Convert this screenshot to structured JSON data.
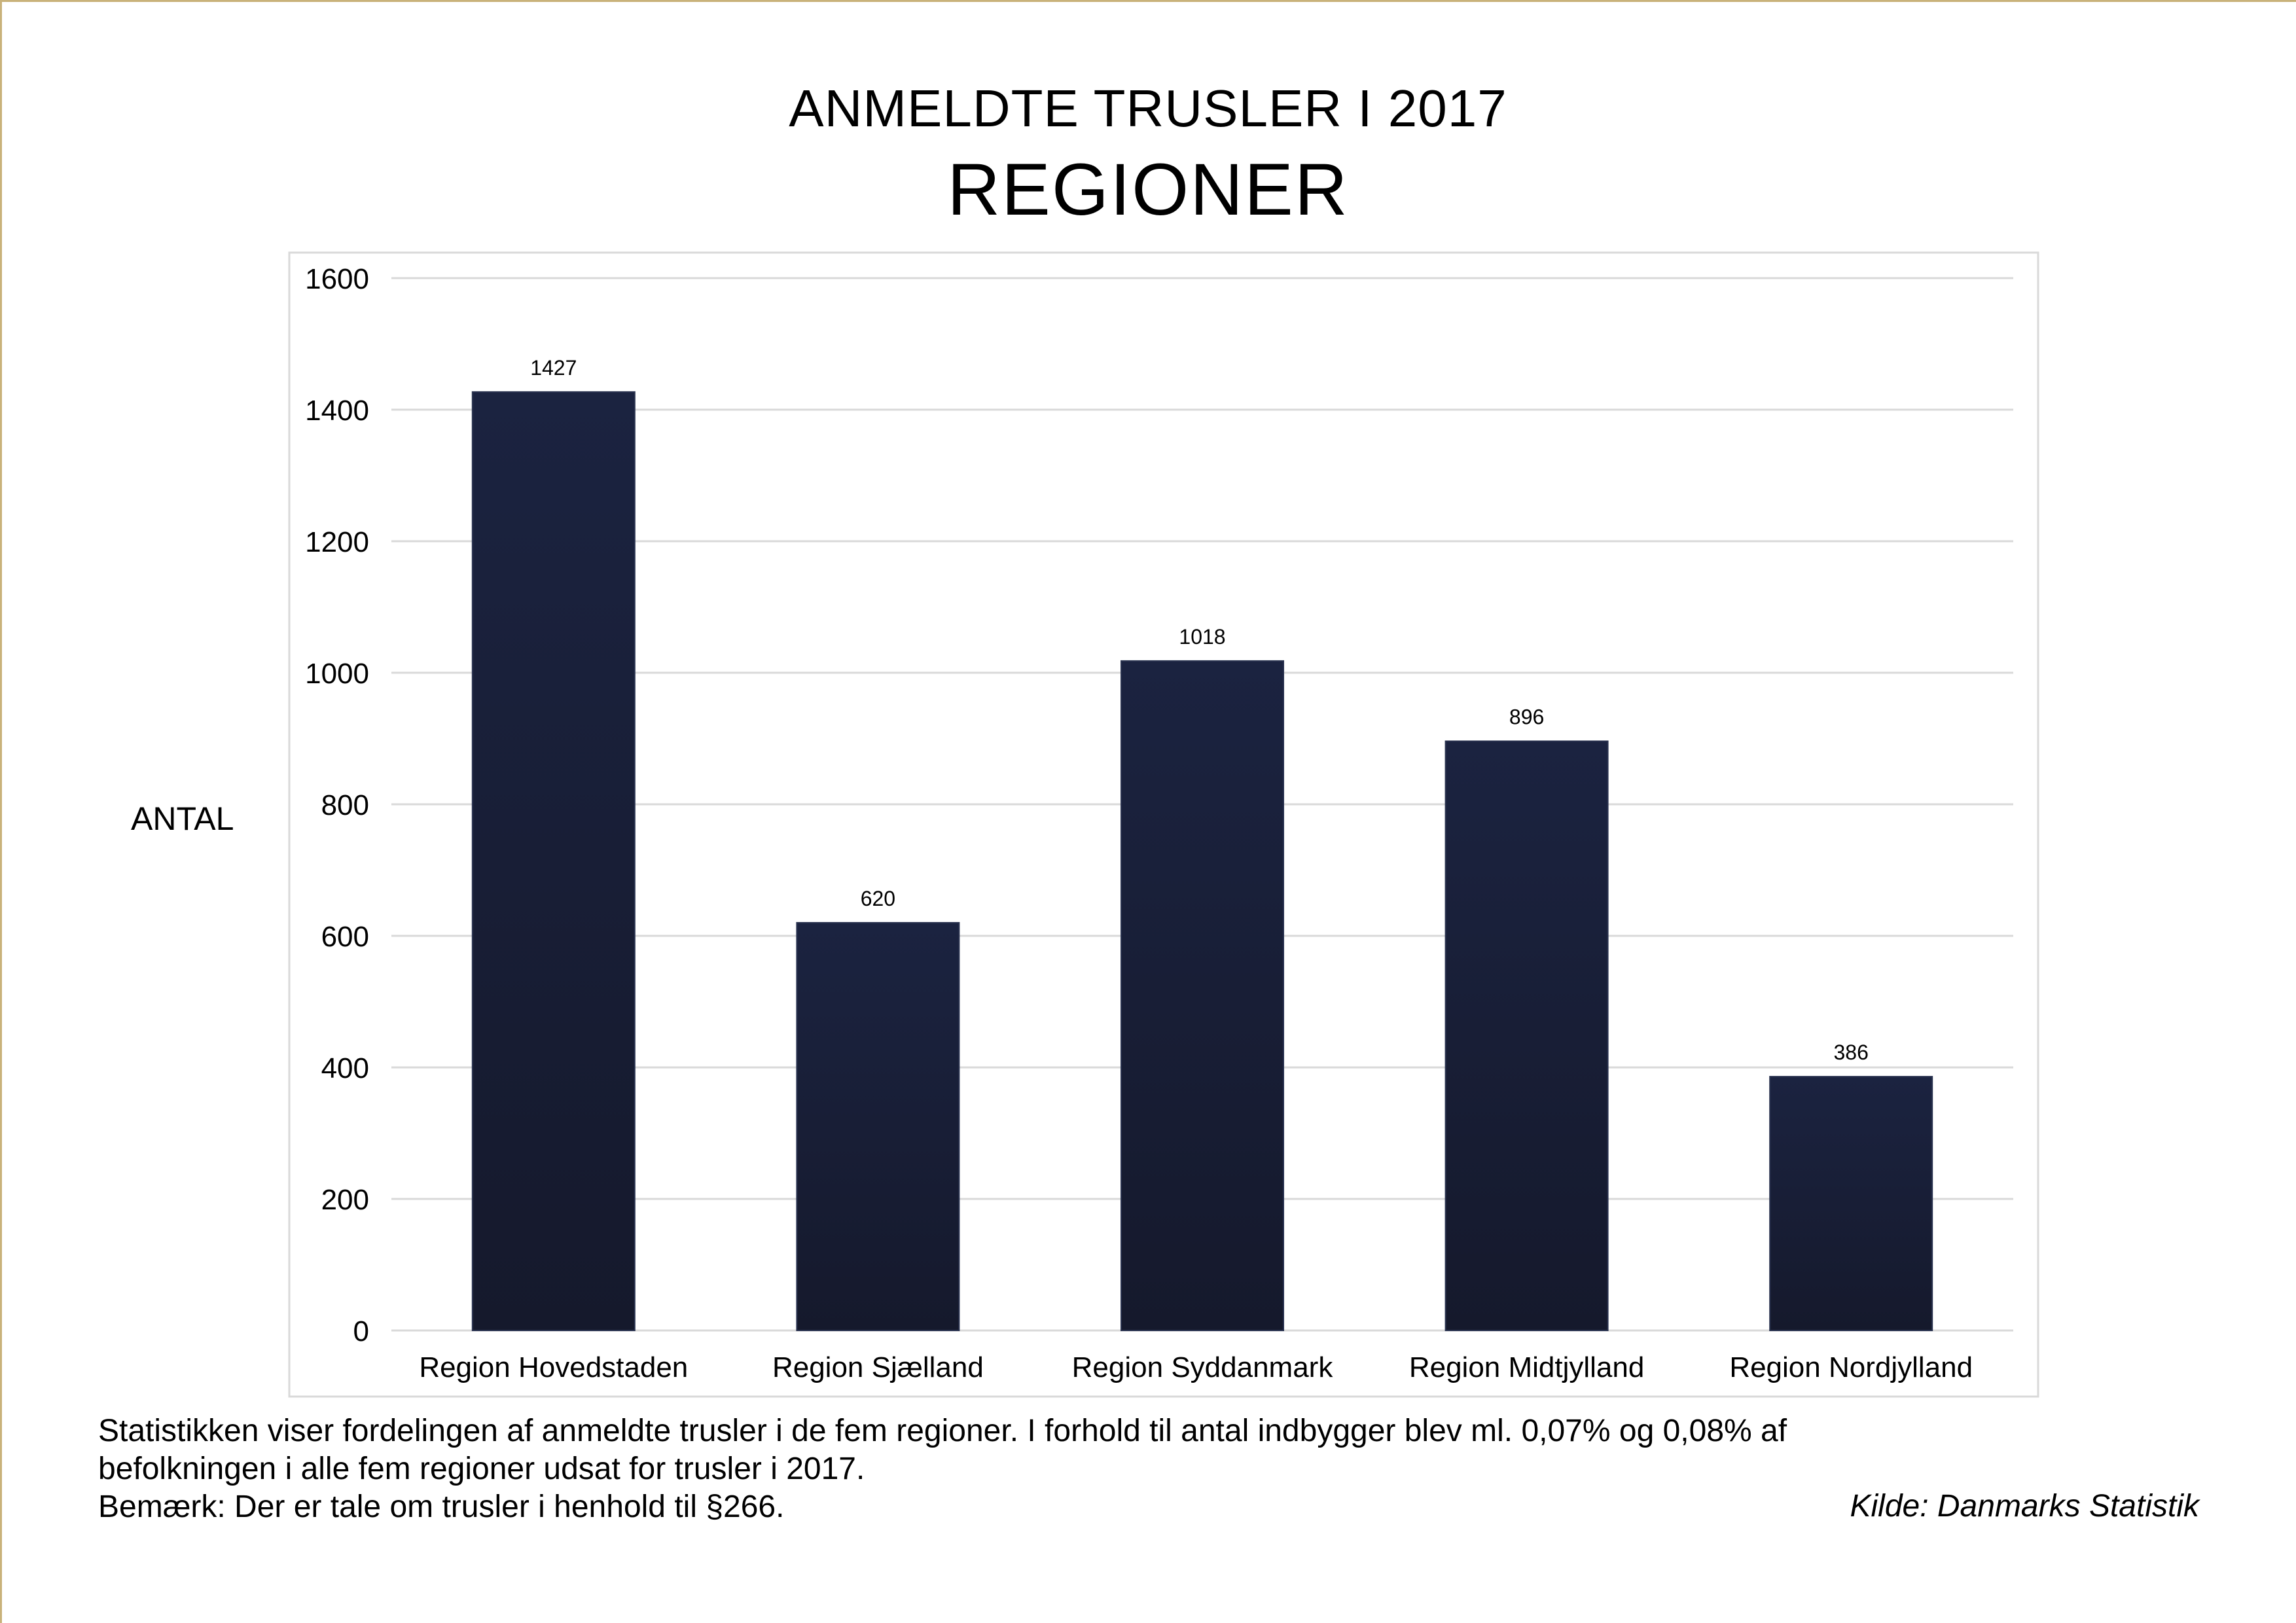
{
  "chart_data": {
    "type": "bar",
    "title": "ANMELDTE TRUSLER I 2017",
    "subtitle": "REGIONER",
    "ylabel": "ANTAL",
    "xlabel": "",
    "categories": [
      "Region Hovedstaden",
      "Region Sjælland",
      "Region Syddanmark",
      "Region Midtjylland",
      "Region Nordjylland"
    ],
    "values": [
      1427,
      620,
      1018,
      896,
      386
    ],
    "ylim": [
      0,
      1600
    ],
    "yticks": [
      0,
      200,
      400,
      600,
      800,
      1000,
      1200,
      1400,
      1600
    ],
    "grid": true,
    "legend": "none",
    "bar_color": "#1b2340",
    "bar_color_bottom": "#15192c",
    "grid_color": "#d9d9d9"
  },
  "notes": {
    "line1": "Statistikken viser fordelingen af anmeldte trusler i de fem regioner. I forhold til antal indbygger blev ml. 0,07% og 0,08% af",
    "line2": "befolkningen i alle fem regioner udsat for trusler i 2017.",
    "line3": "Bemærk: Der er tale om trusler i henhold til §266."
  },
  "source": "Kilde: Danmarks Statistik"
}
